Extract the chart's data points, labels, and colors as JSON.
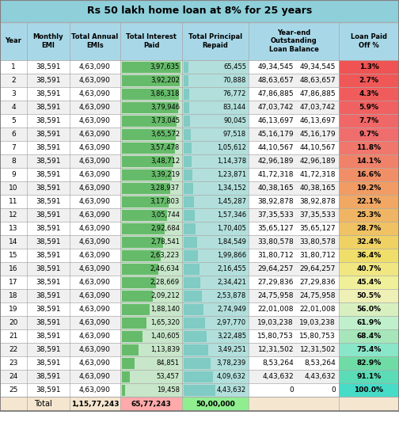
{
  "title": "Rs 50 lakh home loan at 8% for 25 years",
  "headers": [
    "Year",
    "Monthly\nEMI",
    "Total Annual\nEMIs",
    "Total Interest\nPaid",
    "Total Principal\nRepaid",
    "Year-end\nOutstanding\nLoan Balance",
    "Loan Paid\nOff %"
  ],
  "rows": [
    [
      1,
      "38,591",
      "4,63,090",
      "3,97,635",
      "65,455",
      "49,34,545",
      "1.3%"
    ],
    [
      2,
      "38,591",
      "4,63,090",
      "3,92,202",
      "70,888",
      "48,63,657",
      "2.7%"
    ],
    [
      3,
      "38,591",
      "4,63,090",
      "3,86,318",
      "76,772",
      "47,86,885",
      "4.3%"
    ],
    [
      4,
      "38,591",
      "4,63,090",
      "3,79,946",
      "83,144",
      "47,03,742",
      "5.9%"
    ],
    [
      5,
      "38,591",
      "4,63,090",
      "3,73,045",
      "90,045",
      "46,13,697",
      "7.7%"
    ],
    [
      6,
      "38,591",
      "4,63,090",
      "3,65,572",
      "97,518",
      "45,16,179",
      "9.7%"
    ],
    [
      7,
      "38,591",
      "4,63,090",
      "3,57,478",
      "1,05,612",
      "44,10,567",
      "11.8%"
    ],
    [
      8,
      "38,591",
      "4,63,090",
      "3,48,712",
      "1,14,378",
      "42,96,189",
      "14.1%"
    ],
    [
      9,
      "38,591",
      "4,63,090",
      "3,39,219",
      "1,23,871",
      "41,72,318",
      "16.6%"
    ],
    [
      10,
      "38,591",
      "4,63,090",
      "3,28,937",
      "1,34,152",
      "40,38,165",
      "19.2%"
    ],
    [
      11,
      "38,591",
      "4,63,090",
      "3,17,803",
      "1,45,287",
      "38,92,878",
      "22.1%"
    ],
    [
      12,
      "38,591",
      "4,63,090",
      "3,05,744",
      "1,57,346",
      "37,35,533",
      "25.3%"
    ],
    [
      13,
      "38,591",
      "4,63,090",
      "2,92,684",
      "1,70,405",
      "35,65,127",
      "28.7%"
    ],
    [
      14,
      "38,591",
      "4,63,090",
      "2,78,541",
      "1,84,549",
      "33,80,578",
      "32.4%"
    ],
    [
      15,
      "38,591",
      "4,63,090",
      "2,63,223",
      "1,99,866",
      "31,80,712",
      "36.4%"
    ],
    [
      16,
      "38,591",
      "4,63,090",
      "2,46,634",
      "2,16,455",
      "29,64,257",
      "40.7%"
    ],
    [
      17,
      "38,591",
      "4,63,090",
      "2,28,669",
      "2,34,421",
      "27,29,836",
      "45.4%"
    ],
    [
      18,
      "38,591",
      "4,63,090",
      "2,09,212",
      "2,53,878",
      "24,75,958",
      "50.5%"
    ],
    [
      19,
      "38,591",
      "4,63,090",
      "1,88,140",
      "2,74,949",
      "22,01,008",
      "56.0%"
    ],
    [
      20,
      "38,591",
      "4,63,090",
      "1,65,320",
      "2,97,770",
      "19,03,238",
      "61.9%"
    ],
    [
      21,
      "38,591",
      "4,63,090",
      "1,40,605",
      "3,22,485",
      "15,80,753",
      "68.4%"
    ],
    [
      22,
      "38,591",
      "4,63,090",
      "1,13,839",
      "3,49,251",
      "12,31,502",
      "75.4%"
    ],
    [
      23,
      "38,591",
      "4,63,090",
      "84,851",
      "3,78,239",
      "8,53,264",
      "82.9%"
    ],
    [
      24,
      "38,591",
      "4,63,090",
      "53,457",
      "4,09,632",
      "4,43,632",
      "91.1%"
    ],
    [
      25,
      "38,591",
      "4,63,090",
      "19,458",
      "4,43,632",
      "0",
      "100.0%"
    ]
  ],
  "totals_label": "Total",
  "totals_emi": "1,15,77,243",
  "totals_interest": "65,77,243",
  "totals_principal": "50,00,000",
  "title_bg": "#8ECFDA",
  "header_bg": "#A8D8E8",
  "grid_color": "#AAAAAA",
  "interest_bar_color": "#66BB6A",
  "interest_bar_bg": "#C8E6C9",
  "principal_bar_color": "#80CBC4",
  "principal_bar_bg": "#B2DFDB",
  "total_row_bg": "#F5E6D0",
  "total_interest_bg": "#FFAAAA",
  "total_principal_bg": "#90EE90"
}
